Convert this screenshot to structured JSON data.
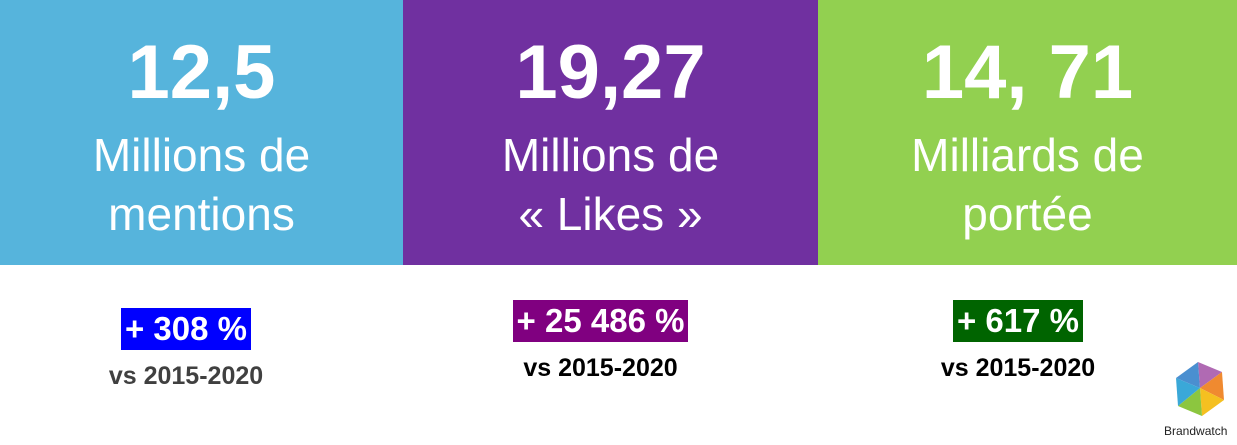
{
  "panels": [
    {
      "value": "12,5",
      "lines": [
        "Millions de",
        "mentions"
      ],
      "change": "+ 308 %",
      "period": "vs 2015-2020"
    },
    {
      "value": "19,27",
      "lines": [
        "Millions de",
        "« Likes »"
      ],
      "change": "+ 25 486 %",
      "period": "vs 2015-2020"
    },
    {
      "value": "14, 71",
      "lines": [
        "Milliards de",
        "portée"
      ],
      "change": "+ 617 %",
      "period": "vs 2015-2020"
    }
  ],
  "logo": {
    "label": "Brandwatch"
  }
}
